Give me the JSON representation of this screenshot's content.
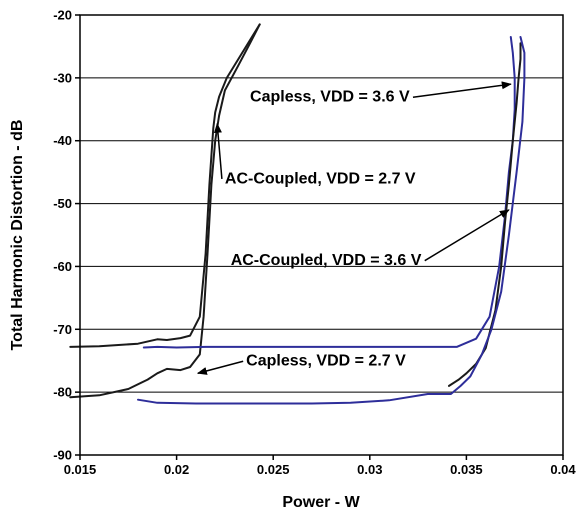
{
  "chart_data": {
    "type": "line",
    "title": "",
    "xlabel": "Power - W",
    "ylabel": "Total Harmonic Distortion - dB",
    "xlim": [
      0.015,
      0.04
    ],
    "ylim": [
      -90,
      -20
    ],
    "xticks": [
      0.015,
      0.02,
      0.025,
      0.03,
      0.035,
      0.04
    ],
    "xtick_labels": [
      "0.015",
      "0.02",
      "0.025",
      "0.03",
      "0.035",
      "0.04"
    ],
    "yticks": [
      -90,
      -80,
      -70,
      -60,
      -50,
      -40,
      -30,
      -20
    ],
    "ytick_labels": [
      "-90",
      "-80",
      "-70",
      "-60",
      "-50",
      "-40",
      "-30",
      "-20"
    ],
    "grid": "horizontal",
    "colors": {
      "black": "#1a1a1a",
      "blue": "#2e2e9a"
    },
    "series": [
      {
        "color": "black",
        "x": [
          0.0145,
          0.016,
          0.018,
          0.019,
          0.0195,
          0.0202,
          0.0207,
          0.0212,
          0.0215,
          0.0217,
          0.0219,
          0.022,
          0.0222,
          0.0226,
          0.0232,
          0.0238,
          0.0243
        ],
        "y": [
          -72.8,
          -72.7,
          -72.3,
          -71.6,
          -71.7,
          -71.4,
          -71,
          -68,
          -58,
          -47,
          -38,
          -35.5,
          -33,
          -30,
          -27,
          -24,
          -21.5
        ]
      },
      {
        "color": "black",
        "x": [
          0.0145,
          0.016,
          0.0175,
          0.0185,
          0.019,
          0.0195,
          0.0202,
          0.0207,
          0.0212,
          0.0214,
          0.0216,
          0.0218,
          0.022,
          0.0222,
          0.0225,
          0.0232,
          0.0238,
          0.0243
        ],
        "y": [
          -80.8,
          -80.5,
          -79.5,
          -78,
          -77,
          -76.3,
          -76.5,
          -76,
          -74,
          -68,
          -58,
          -47,
          -40,
          -36,
          -32,
          -28,
          -24.5,
          -21.5
        ]
      },
      {
        "color": "blue",
        "x": [
          0.0183,
          0.019,
          0.02,
          0.0215,
          0.025,
          0.03,
          0.0345,
          0.0355,
          0.0362,
          0.0367,
          0.037,
          0.0372,
          0.0374,
          0.0375,
          0.0375,
          0.0374,
          0.0373
        ],
        "y": [
          -72.9,
          -72.8,
          -72.9,
          -72.8,
          -72.8,
          -72.8,
          -72.8,
          -71.5,
          -68,
          -60,
          -52,
          -45,
          -40,
          -35,
          -30,
          -26,
          -23.5
        ]
      },
      {
        "color": "black",
        "x": [
          0.0341,
          0.0346,
          0.035,
          0.0355,
          0.036,
          0.0365,
          0.0368,
          0.037,
          0.0372,
          0.0374,
          0.0376,
          0.0377,
          0.0378,
          0.0378
        ],
        "y": [
          -79,
          -78,
          -77,
          -75.5,
          -73,
          -67,
          -60,
          -53,
          -47,
          -40,
          -34,
          -30,
          -27,
          -24.5
        ]
      },
      {
        "color": "blue",
        "x": [
          0.018,
          0.019,
          0.021,
          0.023,
          0.025,
          0.027,
          0.029,
          0.031,
          0.033,
          0.0342,
          0.0347,
          0.0352,
          0.0358,
          0.0363,
          0.0368,
          0.0372,
          0.0376,
          0.0379,
          0.038,
          0.038,
          0.0378
        ],
        "y": [
          -81.2,
          -81.7,
          -81.8,
          -81.8,
          -81.8,
          -81.8,
          -81.7,
          -81.3,
          -80.3,
          -80.3,
          -79,
          -77.5,
          -74,
          -70,
          -64,
          -55,
          -45,
          -37,
          -30,
          -26,
          -23.5
        ]
      }
    ],
    "annotations": [
      {
        "text": "Capless, VDD = 3.6 V",
        "x": 0.0238,
        "y": -33.8,
        "target": [
          0.0373,
          -31
        ]
      },
      {
        "text": "AC-Coupled, VDD = 2.7 V",
        "x": 0.0225,
        "y": -46.8,
        "target": [
          0.0221,
          -37.3
        ]
      },
      {
        "text": "AC-Coupled, VDD = 3.6 V",
        "x": 0.0228,
        "y": -59.8,
        "target": [
          0.0372,
          -51
        ]
      },
      {
        "text": "Capless, VDD = 2.7 V",
        "x": 0.0236,
        "y": -75.8,
        "target": [
          0.0211,
          -77
        ]
      }
    ]
  }
}
